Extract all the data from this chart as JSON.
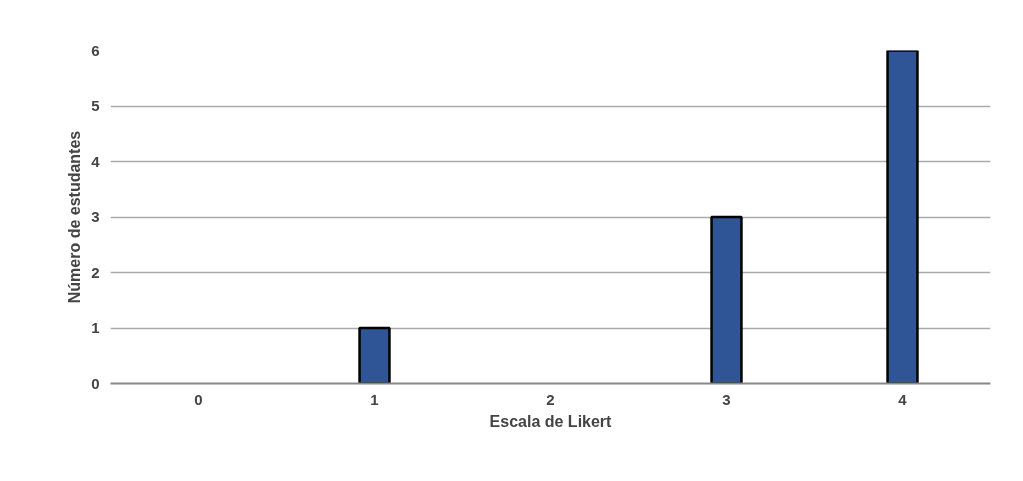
{
  "chart_data": {
    "type": "bar",
    "xlabel": "Escala de Likert",
    "ylabel": "Número de estudantes",
    "categories": [
      "0",
      "1",
      "2",
      "3",
      "4"
    ],
    "series": [
      {
        "color": "#2f5597",
        "values": [
          0,
          1,
          0,
          3,
          6
        ]
      }
    ],
    "ylim": [
      0,
      6
    ],
    "yticks": [
      0,
      1,
      2,
      3,
      4,
      5,
      6
    ],
    "grid": "y"
  }
}
